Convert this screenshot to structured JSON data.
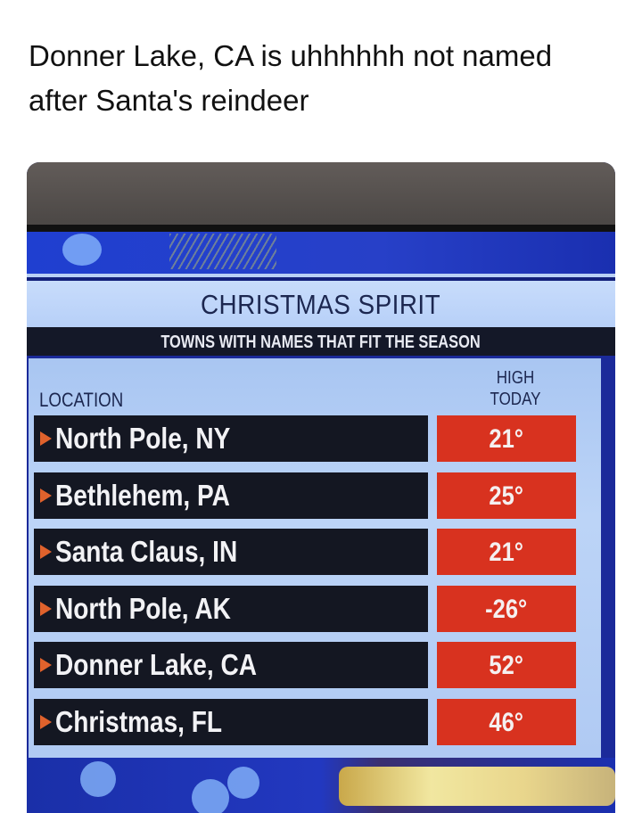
{
  "caption": "Donner Lake, CA is uhhhhhh not named after Santa's reindeer",
  "graphic": {
    "title": "CHRISTMAS SPIRIT",
    "subtitle": "TOWNS WITH NAMES THAT FIT THE SEASON",
    "location_header": "LOCATION",
    "high_header_line1": "HIGH",
    "high_header_line2": "TODAY",
    "rows": [
      {
        "location": "North Pole, NY",
        "high": "21°"
      },
      {
        "location": "Bethlehem, PA",
        "high": "25°"
      },
      {
        "location": "Santa Claus, IN",
        "high": "21°"
      },
      {
        "location": "North Pole, AK",
        "high": "-26°"
      },
      {
        "location": "Donner Lake, CA",
        "high": "52°"
      },
      {
        "location": "Christmas, FL",
        "high": "46°"
      }
    ],
    "colors": {
      "temp_cell": "#d8321f",
      "location_cell": "#141722",
      "panel": "#b7d0f8",
      "arrow": "#e0622c"
    }
  }
}
